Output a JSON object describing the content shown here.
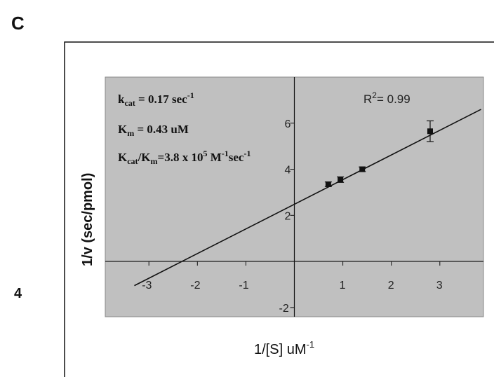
{
  "panel_label": "C",
  "side_label": "4",
  "chart_data": {
    "type": "scatter",
    "title": "",
    "xlabel": "1/[S] uM",
    "xlabel_sup": "-1",
    "ylabel": "1/v (sec/pmol)",
    "xlim": [
      -3.9,
      3.9
    ],
    "ylim": [
      -2.4,
      8.0
    ],
    "x_ticks": [
      -3,
      -2,
      -1,
      1,
      2,
      3
    ],
    "y_ticks": [
      -2,
      2,
      4,
      6
    ],
    "grid": false,
    "background": "#c0c0c0",
    "series": [
      {
        "points": [
          {
            "x": 0.7,
            "y": 3.35,
            "err": 0.1
          },
          {
            "x": 0.95,
            "y": 3.55,
            "err": 0.12
          },
          {
            "x": 1.4,
            "y": 4.0,
            "err": 0.1
          },
          {
            "x": 2.8,
            "y": 5.65,
            "err": 0.45
          }
        ]
      }
    ],
    "fit_line": {
      "x": [
        -3.3,
        3.85
      ],
      "y": [
        -1.05,
        6.6
      ]
    },
    "r_squared": {
      "prefix": "R",
      "sup": "2",
      "suffix": "= 0.99"
    },
    "annotations": {
      "kcat": {
        "main": "k",
        "sub": "cat",
        "rest": " = 0.17 sec",
        "sup": "-1"
      },
      "km": {
        "main": "K",
        "sub": "m",
        "rest": " = 0.43 uM"
      },
      "ratio": {
        "k1": "K",
        "sub1": "cat",
        "slash": "/K",
        "sub2": "m",
        "val": "=3.8 x 10",
        "exp": "5",
        "unit1": " M",
        "sup2": "-1",
        "unit2": "sec",
        "sup3": "-1"
      }
    }
  }
}
